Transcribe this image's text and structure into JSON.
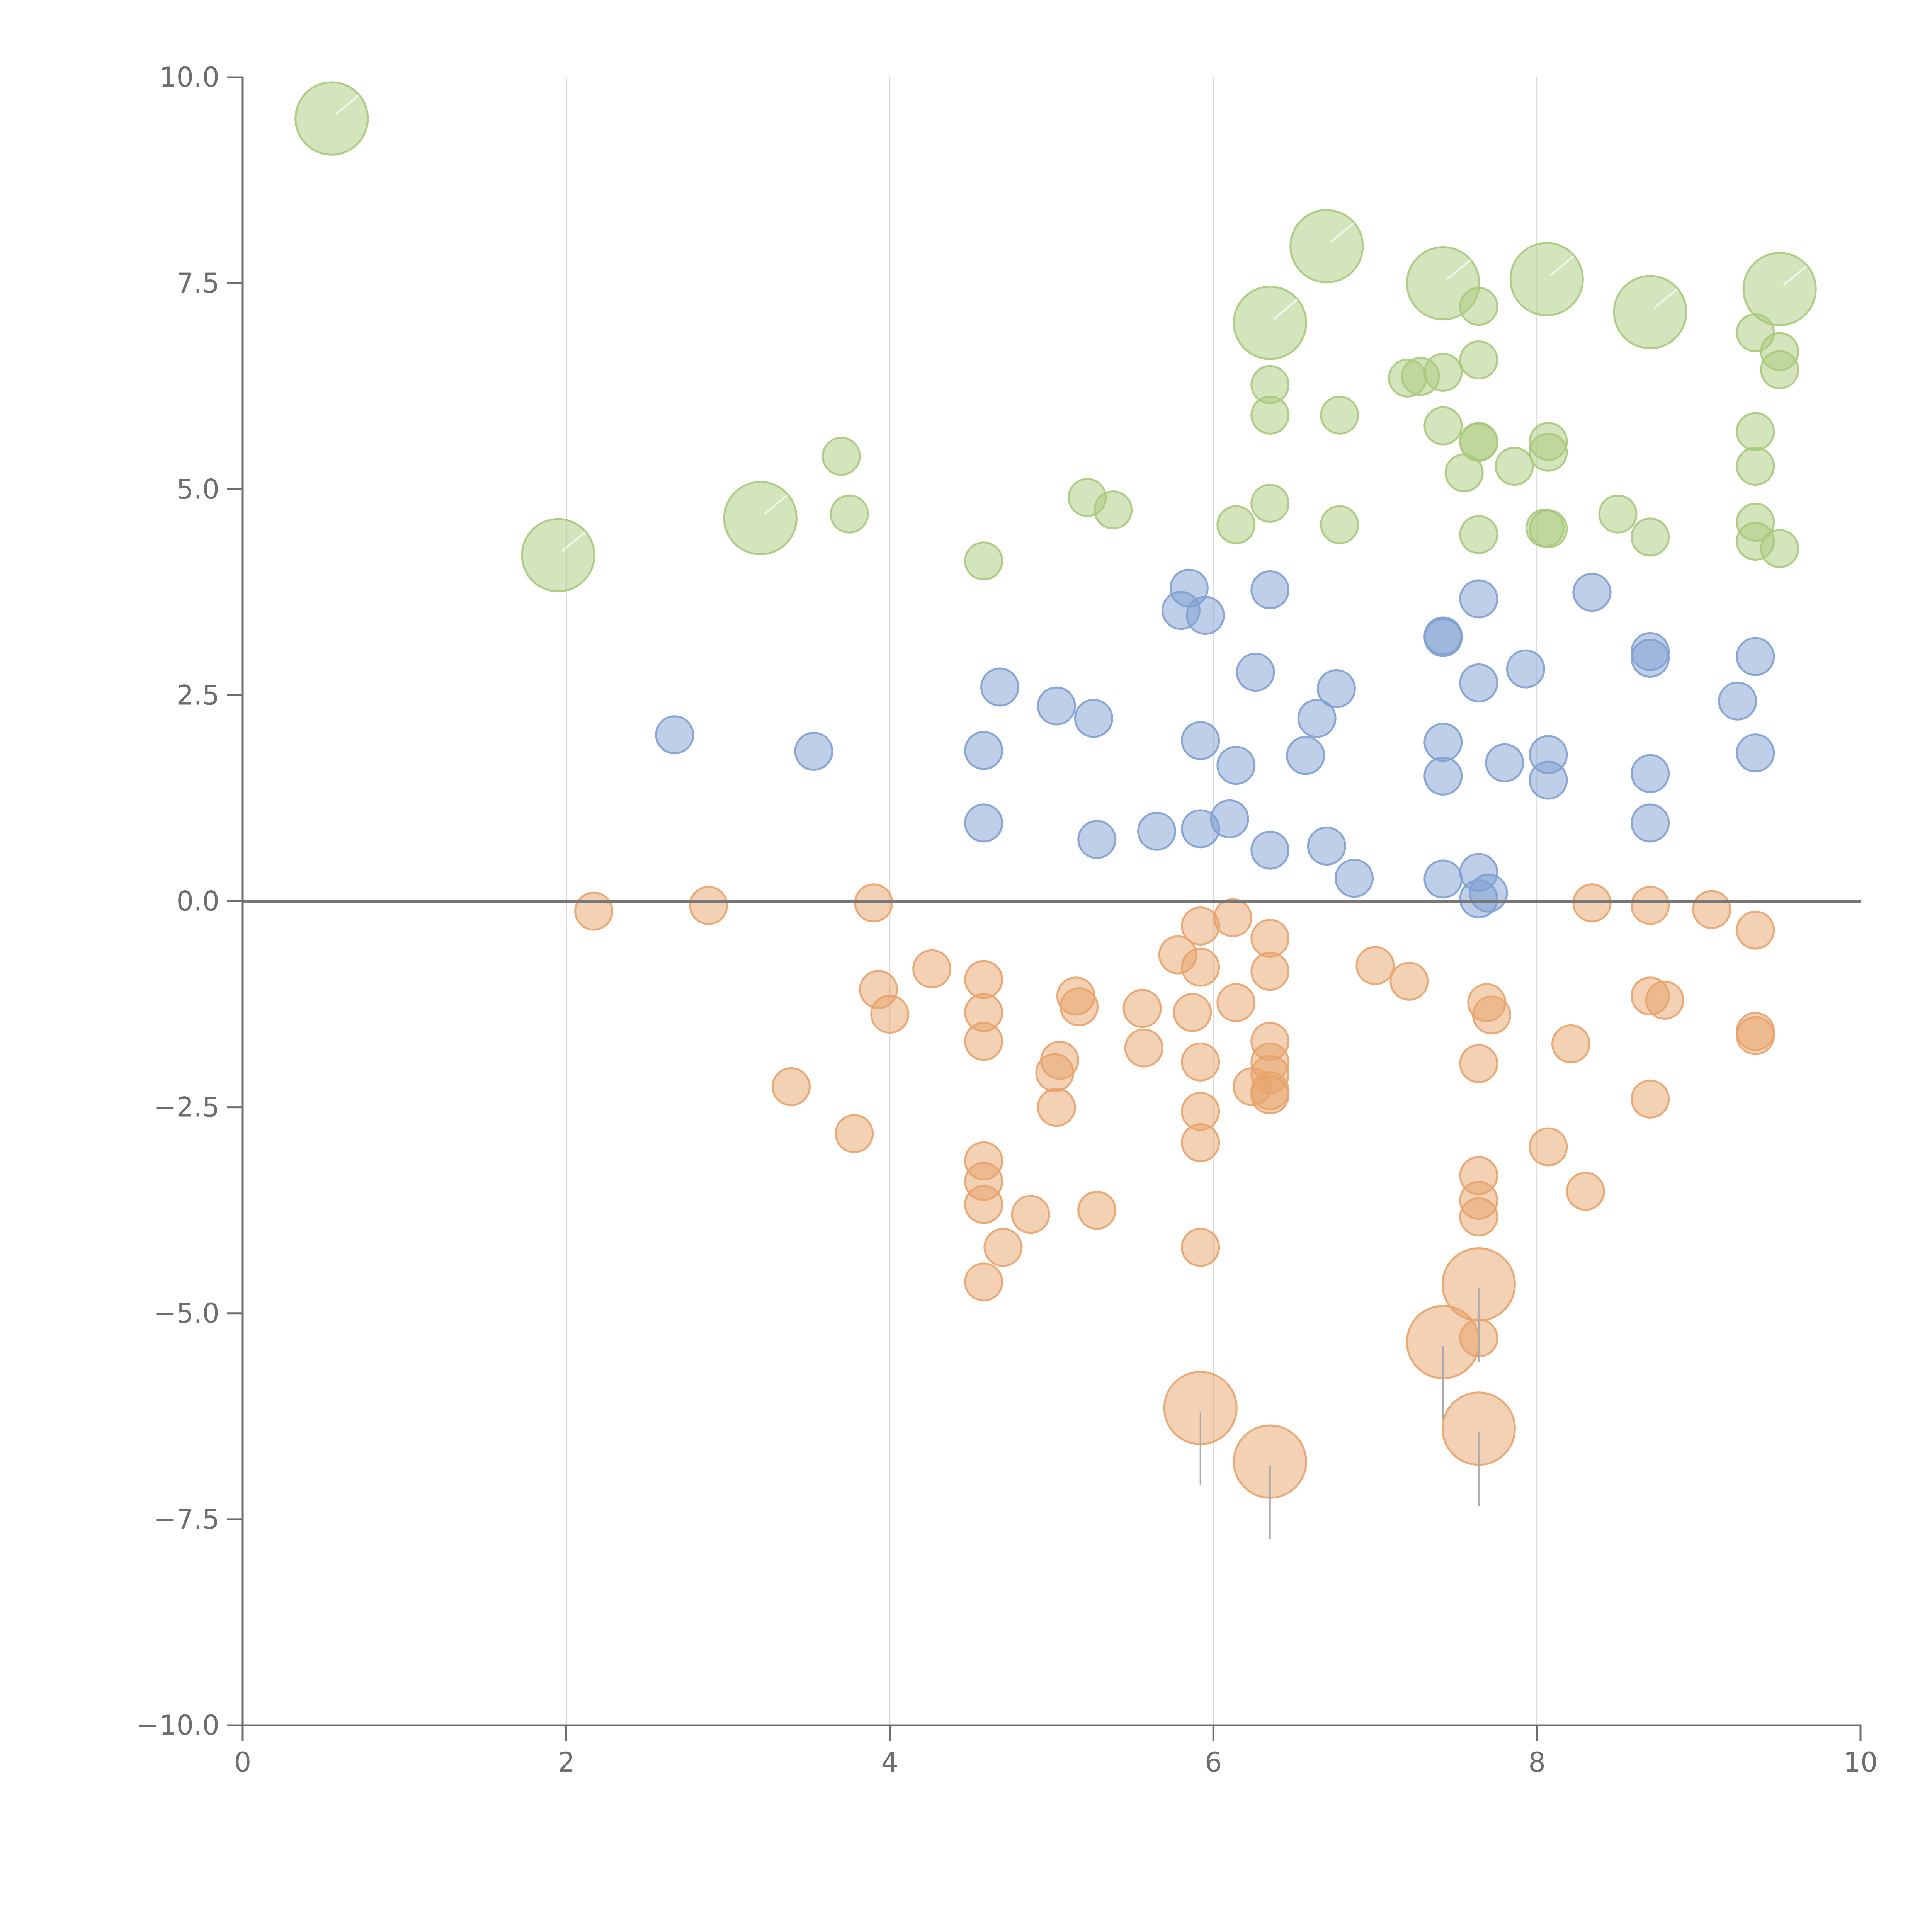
{
  "chart_data": {
    "type": "scatter",
    "title": "",
    "xlabel": "",
    "ylabel": "",
    "xlim": [
      0,
      10
    ],
    "ylim": [
      -10,
      10
    ],
    "x_ticks": [
      "0",
      "2",
      "4",
      "6",
      "8",
      "10"
    ],
    "y_ticks": [
      "10.0",
      "7.5",
      "5.0",
      "2.5",
      "0.0",
      "−2.5",
      "−5.0",
      "−7.5",
      "−10.0"
    ],
    "x_grid": true,
    "y_grid": false,
    "zero_line": true,
    "colors": {
      "positive_high": "#a9c97c",
      "positive_low": "#7fa0d2",
      "negative": "#e8a36b",
      "grid": "#d9d9d9",
      "axis": "#6e6e6e"
    },
    "series": [
      {
        "name": "green",
        "color": "#a9c97c",
        "points": [
          [
            0.55,
            9.5,
            2.2
          ],
          [
            1.95,
            4.2,
            2.2
          ],
          [
            3.2,
            4.65,
            2.2
          ],
          [
            3.7,
            5.4,
            1
          ],
          [
            3.75,
            4.7,
            1
          ],
          [
            4.58,
            4.13,
            1
          ],
          [
            5.22,
            4.9,
            1
          ],
          [
            5.38,
            4.75,
            1
          ],
          [
            6.14,
            4.57,
            1
          ],
          [
            6.35,
            7.02,
            2.2
          ],
          [
            6.35,
            6.27,
            1
          ],
          [
            6.35,
            5.9,
            1
          ],
          [
            6.35,
            4.83,
            1
          ],
          [
            6.7,
            7.95,
            2.2
          ],
          [
            6.78,
            5.9,
            1
          ],
          [
            6.78,
            4.57,
            1
          ],
          [
            7.2,
            6.35,
            1
          ],
          [
            7.28,
            6.37,
            1
          ],
          [
            7.42,
            7.5,
            2.2
          ],
          [
            7.42,
            6.42,
            1
          ],
          [
            7.42,
            5.77,
            1
          ],
          [
            7.55,
            5.2,
            1
          ],
          [
            7.64,
            7.22,
            1
          ],
          [
            7.64,
            6.57,
            1
          ],
          [
            7.64,
            5.58,
            1
          ],
          [
            7.64,
            5.57,
            1
          ],
          [
            7.64,
            4.45,
            1
          ],
          [
            7.86,
            5.28,
            1
          ],
          [
            8.06,
            7.55,
            2.2
          ],
          [
            8.07,
            5.58,
            1
          ],
          [
            8.07,
            5.45,
            1
          ],
          [
            8.05,
            4.53,
            1
          ],
          [
            8.07,
            4.52,
            1
          ],
          [
            8.5,
            4.7,
            1
          ],
          [
            8.7,
            7.15,
            2.2
          ],
          [
            8.7,
            4.42,
            1
          ],
          [
            9.35,
            6.9,
            1
          ],
          [
            9.35,
            5.7,
            1
          ],
          [
            9.35,
            5.28,
            1
          ],
          [
            9.35,
            4.6,
            1
          ],
          [
            9.35,
            4.37,
            1
          ],
          [
            9.5,
            7.43,
            2.2
          ],
          [
            9.5,
            6.67,
            1
          ],
          [
            9.5,
            6.45,
            1
          ],
          [
            9.5,
            4.28,
            1
          ]
        ]
      },
      {
        "name": "blue",
        "color": "#7fa0d2",
        "points": [
          [
            2.67,
            2.02,
            1
          ],
          [
            3.53,
            1.82,
            1
          ],
          [
            4.58,
            1.83,
            1
          ],
          [
            4.58,
            0.95,
            1
          ],
          [
            4.68,
            2.6,
            1
          ],
          [
            5.03,
            2.37,
            1
          ],
          [
            5.26,
            2.22,
            1
          ],
          [
            5.28,
            0.75,
            1
          ],
          [
            5.65,
            0.85,
            1
          ],
          [
            5.8,
            3.53,
            1
          ],
          [
            5.85,
            3.8,
            1
          ],
          [
            5.92,
            1.95,
            1
          ],
          [
            5.92,
            0.88,
            1
          ],
          [
            5.95,
            3.47,
            1
          ],
          [
            6.1,
            1.0,
            1
          ],
          [
            6.14,
            1.65,
            1
          ],
          [
            6.26,
            2.78,
            1
          ],
          [
            6.35,
            3.78,
            1
          ],
          [
            6.35,
            0.62,
            1
          ],
          [
            6.57,
            1.77,
            1
          ],
          [
            6.64,
            2.22,
            1
          ],
          [
            6.7,
            0.67,
            1
          ],
          [
            6.76,
            2.58,
            1
          ],
          [
            6.87,
            0.28,
            1
          ],
          [
            7.42,
            3.22,
            1
          ],
          [
            7.42,
            3.2,
            1
          ],
          [
            7.42,
            1.93,
            1
          ],
          [
            7.42,
            1.52,
            1
          ],
          [
            7.42,
            0.27,
            1
          ],
          [
            7.64,
            3.67,
            1
          ],
          [
            7.64,
            2.65,
            1
          ],
          [
            7.64,
            0.35,
            1
          ],
          [
            7.64,
            0.03,
            1
          ],
          [
            7.7,
            0.1,
            1
          ],
          [
            7.8,
            1.68,
            1
          ],
          [
            7.93,
            2.82,
            1
          ],
          [
            8.07,
            1.78,
            1
          ],
          [
            8.07,
            1.47,
            1
          ],
          [
            8.34,
            3.75,
            1
          ],
          [
            8.7,
            3.03,
            1
          ],
          [
            8.7,
            2.95,
            1
          ],
          [
            8.7,
            1.55,
            1
          ],
          [
            8.7,
            0.95,
            1
          ],
          [
            9.24,
            2.43,
            1
          ],
          [
            9.35,
            2.97,
            1
          ],
          [
            9.35,
            1.8,
            1
          ]
        ]
      },
      {
        "name": "orange",
        "color": "#e8a36b",
        "points": [
          [
            2.17,
            -0.12,
            1
          ],
          [
            2.88,
            -0.05,
            1
          ],
          [
            3.39,
            -2.25,
            1
          ],
          [
            3.78,
            -2.82,
            1
          ],
          [
            3.9,
            -0.02,
            1
          ],
          [
            3.93,
            -1.07,
            1
          ],
          [
            4.0,
            -1.37,
            1
          ],
          [
            4.26,
            -0.82,
            1
          ],
          [
            4.58,
            -0.95,
            1
          ],
          [
            4.58,
            -1.35,
            1
          ],
          [
            4.58,
            -1.7,
            1
          ],
          [
            4.58,
            -3.15,
            1
          ],
          [
            4.58,
            -3.4,
            1
          ],
          [
            4.58,
            -3.68,
            1
          ],
          [
            4.58,
            -4.62,
            1
          ],
          [
            4.7,
            -4.2,
            1
          ],
          [
            4.87,
            -3.8,
            1
          ],
          [
            5.02,
            -2.08,
            1
          ],
          [
            5.05,
            -1.93,
            1
          ],
          [
            5.03,
            -2.5,
            1
          ],
          [
            5.15,
            -1.15,
            1
          ],
          [
            5.17,
            -1.28,
            1
          ],
          [
            5.28,
            -3.75,
            1
          ],
          [
            5.56,
            -1.3,
            1
          ],
          [
            5.57,
            -1.78,
            1
          ],
          [
            5.78,
            -0.65,
            1
          ],
          [
            5.87,
            -1.35,
            1
          ],
          [
            5.92,
            -0.3,
            1
          ],
          [
            5.92,
            -0.8,
            1
          ],
          [
            5.92,
            -1.95,
            1
          ],
          [
            5.92,
            -2.55,
            1
          ],
          [
            5.92,
            -2.93,
            1
          ],
          [
            5.92,
            -4.2,
            1
          ],
          [
            5.92,
            -6.15,
            2.2
          ],
          [
            6.12,
            -0.2,
            1
          ],
          [
            6.14,
            -1.23,
            1
          ],
          [
            6.24,
            -2.25,
            1
          ],
          [
            6.35,
            -0.45,
            1
          ],
          [
            6.35,
            -0.85,
            1
          ],
          [
            6.35,
            -1.7,
            1
          ],
          [
            6.35,
            -1.95,
            1
          ],
          [
            6.35,
            -2.1,
            1
          ],
          [
            6.35,
            -2.3,
            1
          ],
          [
            6.35,
            -2.35,
            1
          ],
          [
            6.35,
            -6.8,
            2.2
          ],
          [
            7.0,
            -0.78,
            1
          ],
          [
            7.21,
            -0.97,
            1
          ],
          [
            7.42,
            -5.35,
            2.2
          ],
          [
            7.64,
            -1.97,
            1
          ],
          [
            7.64,
            -3.33,
            1
          ],
          [
            7.64,
            -3.63,
            1
          ],
          [
            7.64,
            -3.83,
            1
          ],
          [
            7.64,
            -4.65,
            2.2
          ],
          [
            7.64,
            -5.3,
            1
          ],
          [
            7.64,
            -6.4,
            2.2
          ],
          [
            7.69,
            -1.23,
            1
          ],
          [
            7.72,
            -1.38,
            1
          ],
          [
            8.07,
            -2.98,
            1
          ],
          [
            8.21,
            -1.73,
            1
          ],
          [
            8.3,
            -3.52,
            1
          ],
          [
            8.34,
            -0.02,
            1
          ],
          [
            8.7,
            -0.05,
            1
          ],
          [
            8.7,
            -1.15,
            1
          ],
          [
            8.7,
            -2.4,
            1
          ],
          [
            8.79,
            -1.2,
            1
          ],
          [
            9.08,
            -0.1,
            1
          ],
          [
            9.35,
            -0.35,
            1
          ],
          [
            9.35,
            -1.58,
            1
          ],
          [
            9.35,
            -1.63,
            1
          ]
        ]
      }
    ]
  }
}
